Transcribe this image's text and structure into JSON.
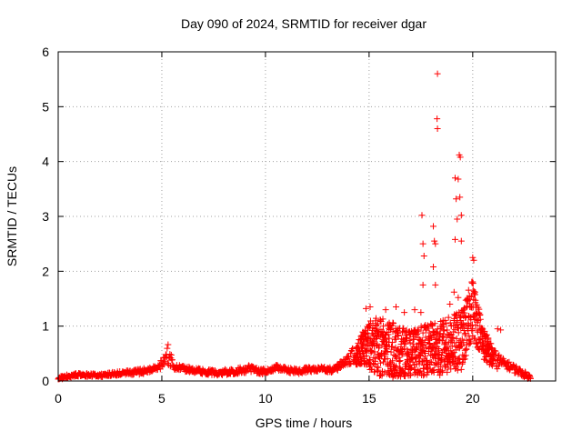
{
  "chart_data": {
    "type": "scatter",
    "title": "Day 090 of 2024, SRMTID for receiver dgar",
    "xlabel": "GPS time / hours",
    "ylabel": "SRMTID / TECUs",
    "xlim": [
      0,
      24
    ],
    "ylim": [
      0,
      6
    ],
    "x_ticks": [
      0,
      5,
      10,
      15,
      20
    ],
    "y_ticks": [
      0,
      1,
      2,
      3,
      4,
      5,
      6
    ],
    "grid": true,
    "marker": "+",
    "marker_color": "#ff0000",
    "series": [
      {
        "name": "SRMTID",
        "description_note": "representative sampled points along the plotted envelope",
        "envelope": [
          {
            "x": 0.0,
            "low": 0.02,
            "high": 0.08
          },
          {
            "x": 0.5,
            "low": 0.06,
            "high": 0.12
          },
          {
            "x": 1.0,
            "low": 0.08,
            "high": 0.15
          },
          {
            "x": 2.0,
            "low": 0.07,
            "high": 0.13
          },
          {
            "x": 3.0,
            "low": 0.1,
            "high": 0.18
          },
          {
            "x": 4.0,
            "low": 0.12,
            "high": 0.22
          },
          {
            "x": 4.8,
            "low": 0.18,
            "high": 0.28
          },
          {
            "x": 5.3,
            "low": 0.3,
            "high": 0.68
          },
          {
            "x": 5.6,
            "low": 0.2,
            "high": 0.3
          },
          {
            "x": 6.5,
            "low": 0.15,
            "high": 0.25
          },
          {
            "x": 7.5,
            "low": 0.1,
            "high": 0.2
          },
          {
            "x": 8.5,
            "low": 0.12,
            "high": 0.22
          },
          {
            "x": 9.0,
            "low": 0.15,
            "high": 0.3
          },
          {
            "x": 10.0,
            "low": 0.12,
            "high": 0.22
          },
          {
            "x": 10.5,
            "low": 0.2,
            "high": 0.3
          },
          {
            "x": 11.5,
            "low": 0.12,
            "high": 0.22
          },
          {
            "x": 12.5,
            "low": 0.18,
            "high": 0.28
          },
          {
            "x": 13.3,
            "low": 0.15,
            "high": 0.25
          },
          {
            "x": 14.0,
            "low": 0.3,
            "high": 0.5
          },
          {
            "x": 14.7,
            "low": 0.3,
            "high": 0.9
          },
          {
            "x": 15.2,
            "low": 0.1,
            "high": 1.2
          },
          {
            "x": 16.0,
            "low": 0.05,
            "high": 1.1
          },
          {
            "x": 17.0,
            "low": 0.1,
            "high": 0.9
          },
          {
            "x": 17.5,
            "low": 0.1,
            "high": 1.0
          },
          {
            "x": 18.5,
            "low": 0.1,
            "high": 1.1
          },
          {
            "x": 19.5,
            "low": 0.2,
            "high": 1.3
          },
          {
            "x": 20.0,
            "low": 0.8,
            "high": 1.9
          },
          {
            "x": 20.5,
            "low": 0.4,
            "high": 1.0
          },
          {
            "x": 21.0,
            "low": 0.2,
            "high": 0.6
          },
          {
            "x": 21.5,
            "low": 0.25,
            "high": 0.4
          },
          {
            "x": 22.0,
            "low": 0.15,
            "high": 0.3
          },
          {
            "x": 22.8,
            "low": 0.02,
            "high": 0.1
          }
        ],
        "outliers": [
          {
            "x": 17.55,
            "y": 3.02
          },
          {
            "x": 17.6,
            "y": 2.5
          },
          {
            "x": 17.65,
            "y": 2.28
          },
          {
            "x": 17.6,
            "y": 1.75
          },
          {
            "x": 18.1,
            "y": 2.82
          },
          {
            "x": 18.15,
            "y": 2.55
          },
          {
            "x": 18.2,
            "y": 2.5
          },
          {
            "x": 18.1,
            "y": 2.08
          },
          {
            "x": 18.2,
            "y": 1.75
          },
          {
            "x": 18.3,
            "y": 5.6
          },
          {
            "x": 18.28,
            "y": 4.78
          },
          {
            "x": 18.3,
            "y": 4.6
          },
          {
            "x": 19.15,
            "y": 3.7
          },
          {
            "x": 19.3,
            "y": 3.68
          },
          {
            "x": 19.35,
            "y": 4.12
          },
          {
            "x": 19.4,
            "y": 4.08
          },
          {
            "x": 19.2,
            "y": 3.32
          },
          {
            "x": 19.38,
            "y": 3.35
          },
          {
            "x": 19.25,
            "y": 2.95
          },
          {
            "x": 19.45,
            "y": 3.02
          },
          {
            "x": 19.15,
            "y": 2.58
          },
          {
            "x": 19.45,
            "y": 2.55
          },
          {
            "x": 19.1,
            "y": 1.62
          },
          {
            "x": 19.3,
            "y": 1.52
          },
          {
            "x": 20.0,
            "y": 2.25
          },
          {
            "x": 20.05,
            "y": 2.2
          },
          {
            "x": 15.05,
            "y": 1.35
          },
          {
            "x": 14.85,
            "y": 1.32
          },
          {
            "x": 15.8,
            "y": 1.3
          },
          {
            "x": 16.3,
            "y": 1.35
          },
          {
            "x": 17.2,
            "y": 1.3
          },
          {
            "x": 16.7,
            "y": 1.25
          },
          {
            "x": 17.5,
            "y": 1.25
          },
          {
            "x": 18.9,
            "y": 1.4
          },
          {
            "x": 21.2,
            "y": 0.95
          },
          {
            "x": 21.35,
            "y": 0.93
          }
        ]
      }
    ]
  }
}
